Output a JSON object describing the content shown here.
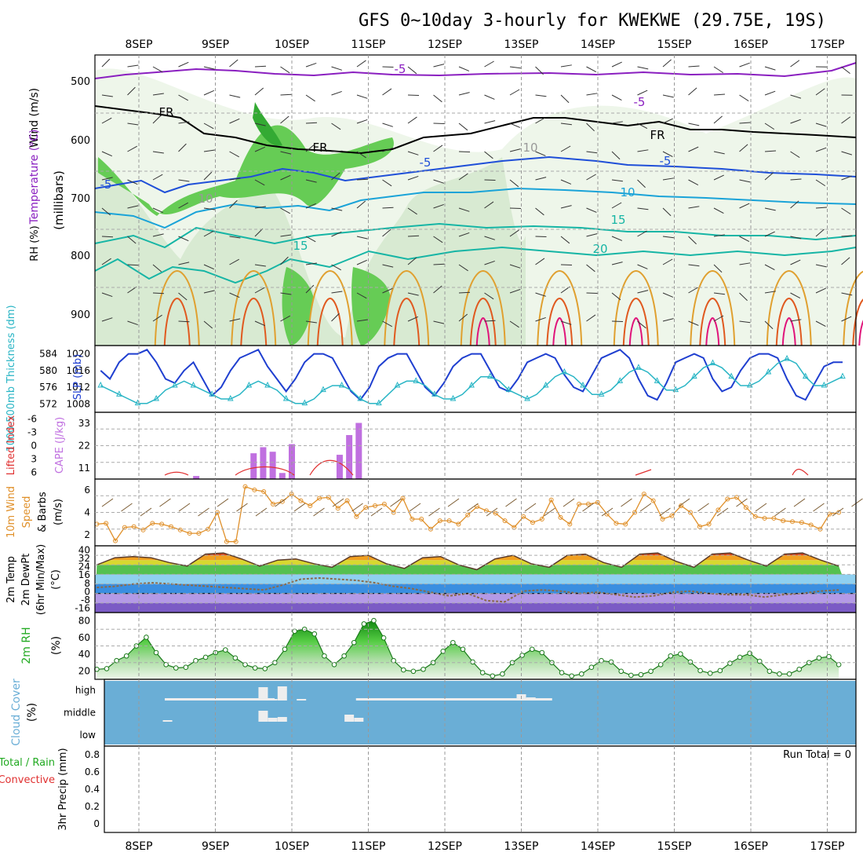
{
  "title": "GFS 0~10day 3-hourly for KWEKWE (29.75E, 19S)",
  "dates": [
    "8SEP",
    "9SEP",
    "10SEP",
    "11SEP",
    "12SEP",
    "13SEP",
    "14SEP",
    "15SEP",
    "16SEP",
    "17SEP"
  ],
  "colors": {
    "purple": "#8a1fc0",
    "black": "#000000",
    "blue": "#1f4fd8",
    "lightblue": "#1aa3d8",
    "teal": "#16b5a5",
    "orange": "#e0a030",
    "red_orange": "#e05a20",
    "magenta": "#e0147a",
    "green": "#33bb33",
    "cyan": "#29b5c5",
    "slp_blue": "#1f3fd0",
    "cape": "#c070e0",
    "li_red": "#e03030",
    "wind_orange": "#e0902a",
    "barb_brown": "#7a5a30",
    "cloud_bg": "#6aaed6"
  },
  "panels": {
    "upper": {
      "ylabel_wind": "Wind (m/s)",
      "ylabel_temp": "Temperature (°C)",
      "ylabel_rh": "RH (%)",
      "ylabel_mb": "(millibars)",
      "ticks": [
        "500",
        "600",
        "700",
        "800",
        "900"
      ],
      "contour_labels": [
        "-5",
        "-5",
        "FR",
        "FR",
        "FR",
        "-5",
        "-5",
        "-5",
        "10",
        "15",
        "15",
        "20",
        "10",
        "10"
      ]
    },
    "thickness": {
      "ylabel_left": "1000-500mb Thickness (dm)",
      "ylabel_right": "SLP (mb)",
      "left_ticks": [
        "584",
        "580",
        "576",
        "572"
      ],
      "right_ticks": [
        "1020",
        "1016",
        "1012",
        "1008"
      ]
    },
    "cape": {
      "ylabel_left": "Lifted Index",
      "ylabel_right": "CAPE (J/kg)",
      "left_ticks": [
        "-6",
        "-3",
        "0",
        "3",
        "6"
      ],
      "right_ticks": [
        "33",
        "22",
        "11"
      ]
    },
    "wind10": {
      "ylabel": [
        "10m Wind",
        "Speed",
        "& Barbs",
        "(m/s)"
      ],
      "ticks": [
        "6",
        "4",
        "2"
      ]
    },
    "temp": {
      "ylabel": [
        "2m Temp",
        "2m DewPt",
        "(6hr Min/Max)",
        "(°C)"
      ],
      "ticks": [
        "40",
        "32",
        "24",
        "16",
        "8",
        "0",
        "-8",
        "-16"
      ]
    },
    "rh": {
      "ylabel": [
        "2m RH",
        "(%)"
      ],
      "ticks": [
        "80",
        "60",
        "40",
        "20"
      ]
    },
    "cloud": {
      "ylabel": [
        "Cloud Cover",
        "(%)"
      ],
      "ticks": [
        "high",
        "middle",
        "low"
      ]
    },
    "precip": {
      "ylabel": [
        "3hr Precip (mm)"
      ],
      "legend": [
        "Total / Rain",
        "Convective"
      ],
      "ticks": [
        "0.8",
        "0.6",
        "0.4",
        "0.2",
        "0"
      ],
      "run_total": "Run Total = 0"
    }
  },
  "chart_data": [
    {
      "type": "line",
      "title": "1000-500mb Thickness (dm) / SLP (mb)",
      "series": [
        {
          "name": "SLP (mb)",
          "values": [
            1016,
            1014,
            1018,
            1020,
            1020,
            1021,
            1018,
            1014,
            1013,
            1016,
            1018,
            1014,
            1010,
            1012,
            1016,
            1019,
            1020,
            1021,
            1017,
            1014,
            1011,
            1014,
            1018,
            1020,
            1020,
            1019,
            1015,
            1011,
            1009,
            1012,
            1017,
            1019,
            1020,
            1020,
            1016,
            1012,
            1010,
            1013,
            1017,
            1019,
            1020,
            1020,
            1016,
            1012,
            1011,
            1014,
            1018,
            1019,
            1020,
            1019,
            1015,
            1012,
            1011,
            1015,
            1019,
            1020,
            1021,
            1019,
            1014,
            1010,
            1009,
            1013,
            1018,
            1019,
            1020,
            1019,
            1014,
            1011,
            1012,
            1016,
            1019,
            1020,
            1020,
            1019,
            1014,
            1010,
            1009,
            1013,
            1017,
            1018,
            1018
          ]
        },
        {
          "name": "1000-500mb Thickness (dm)",
          "values": [
            576,
            575,
            574,
            573,
            572,
            572,
            573,
            575,
            576,
            577,
            576,
            575,
            574,
            573,
            573,
            574,
            576,
            577,
            576,
            575,
            573,
            572,
            572,
            573,
            575,
            576,
            576,
            575,
            573,
            572,
            572,
            574,
            576,
            577,
            577,
            576,
            574,
            573,
            573,
            574,
            576,
            578,
            578,
            577,
            575,
            574,
            573,
            574,
            576,
            578,
            579,
            578,
            576,
            574,
            574,
            575,
            577,
            579,
            580,
            579,
            577,
            575,
            575,
            576,
            578,
            580,
            581,
            580,
            578,
            576,
            576,
            577,
            579,
            581,
            582,
            581,
            578,
            576,
            576,
            577,
            578
          ]
        }
      ]
    },
    {
      "type": "bar",
      "title": "CAPE (J/kg)",
      "x": [
        "8SEP 18Z",
        "9SEP 12Z",
        "9SEP 15Z",
        "9SEP 18Z",
        "9SEP 21Z",
        "10SEP 00Z",
        "10SEP 15Z",
        "10SEP 18Z",
        "10SEP 21Z"
      ],
      "values": [
        2,
        17,
        21,
        18,
        4,
        23,
        16,
        29,
        37
      ],
      "ylim": [
        0,
        44
      ]
    },
    {
      "type": "line",
      "title": "10m Wind Speed (m/s)",
      "values": [
        2.6,
        2.7,
        0.6,
        2.2,
        2.3,
        1.9,
        2.7,
        2.6,
        2.3,
        1.9,
        1.5,
        1.5,
        2.0,
        4.0,
        0.5,
        0.5,
        7.1,
        6.7,
        6.5,
        5.0,
        5.3,
        6.2,
        5.4,
        4.8,
        5.7,
        5.8,
        4.5,
        5.4,
        3.5,
        4.6,
        4.8,
        5.0,
        4.0,
        5.7,
        3.2,
        3.2,
        2.0,
        3.0,
        3.0,
        2.6,
        3.7,
        4.7,
        4.2,
        3.9,
        3.0,
        2.2,
        3.5,
        2.8,
        3.2,
        5.5,
        3.4,
        2.6,
        5.0,
        5.0,
        5.2,
        3.8,
        2.7,
        2.6,
        4.0,
        6.2,
        5.4,
        3.2,
        3.6,
        4.8,
        4.0,
        2.3,
        2.6,
        4.3,
        5.6,
        5.8,
        4.6,
        3.5,
        3.3,
        3.3,
        3.0,
        2.9,
        2.8,
        2.5,
        2.0,
        3.8,
        4.0
      ]
    },
    {
      "type": "line",
      "title": "2m RH (%)",
      "values": [
        15,
        16,
        28,
        35,
        50,
        63,
        40,
        22,
        17,
        18,
        28,
        33,
        40,
        44,
        32,
        22,
        17,
        16,
        25,
        45,
        72,
        75,
        68,
        35,
        22,
        35,
        55,
        83,
        88,
        62,
        28,
        14,
        12,
        15,
        25,
        42,
        55,
        45,
        26,
        10,
        5,
        8,
        25,
        36,
        45,
        40,
        25,
        10,
        5,
        8,
        18,
        28,
        26,
        12,
        6,
        7,
        12,
        22,
        35,
        38,
        26,
        13,
        9,
        13,
        24,
        33,
        39,
        27,
        12,
        8,
        8,
        15,
        25,
        32,
        34,
        22
      ]
    },
    {
      "type": "line",
      "title": "2m Temp / 2m DewPt (°C)",
      "series": [
        {
          "name": "2m Temp (6hr Max)",
          "values": [
            24,
            30,
            31,
            30,
            26,
            23,
            33,
            34,
            29,
            23,
            28,
            29,
            25,
            22,
            31,
            32,
            25,
            21,
            30,
            31,
            24,
            20,
            29,
            32,
            25,
            22,
            32,
            33,
            26,
            22,
            33,
            34,
            27,
            22,
            33,
            34,
            28,
            23,
            33,
            34,
            28,
            23
          ]
        },
        {
          "name": "2m DewPt",
          "values": [
            5,
            6,
            8,
            9,
            8,
            7,
            6,
            5,
            4,
            3,
            7,
            12,
            13,
            12,
            11,
            9,
            6,
            4,
            1,
            -2,
            0,
            -6,
            -7,
            2,
            3,
            2,
            0,
            1,
            -1,
            -3,
            -2,
            1,
            2,
            0,
            -1,
            -1,
            -3,
            -1,
            0,
            2,
            3
          ]
        }
      ]
    },
    {
      "type": "bar",
      "title": "Cloud Cover (%)",
      "series": [
        {
          "name": "high",
          "x": [
            "8SEP 18Z",
            "9SEP 12Z",
            "9SEP 15Z",
            "9SEP 18Z",
            "9SEP 21Z",
            "10SEP 03Z",
            "11SEP 00Z",
            "12SEP 06Z",
            "13SEP 00Z",
            "13SEP 03Z",
            "13SEP 06Z"
          ],
          "values": [
            15,
            15,
            85,
            10,
            90,
            10,
            10,
            10,
            40,
            20,
            10
          ]
        },
        {
          "name": "middle",
          "x": [
            "8SEP 09Z",
            "9SEP 15Z",
            "9SEP 18Z",
            "9SEP 21Z",
            "10SEP 18Z",
            "10SEP 21Z"
          ],
          "values": [
            10,
            70,
            25,
            30,
            45,
            25
          ]
        }
      ]
    },
    {
      "type": "bar",
      "title": "3hr Precip (mm)",
      "values": [],
      "ylim": [
        0,
        1
      ]
    }
  ]
}
